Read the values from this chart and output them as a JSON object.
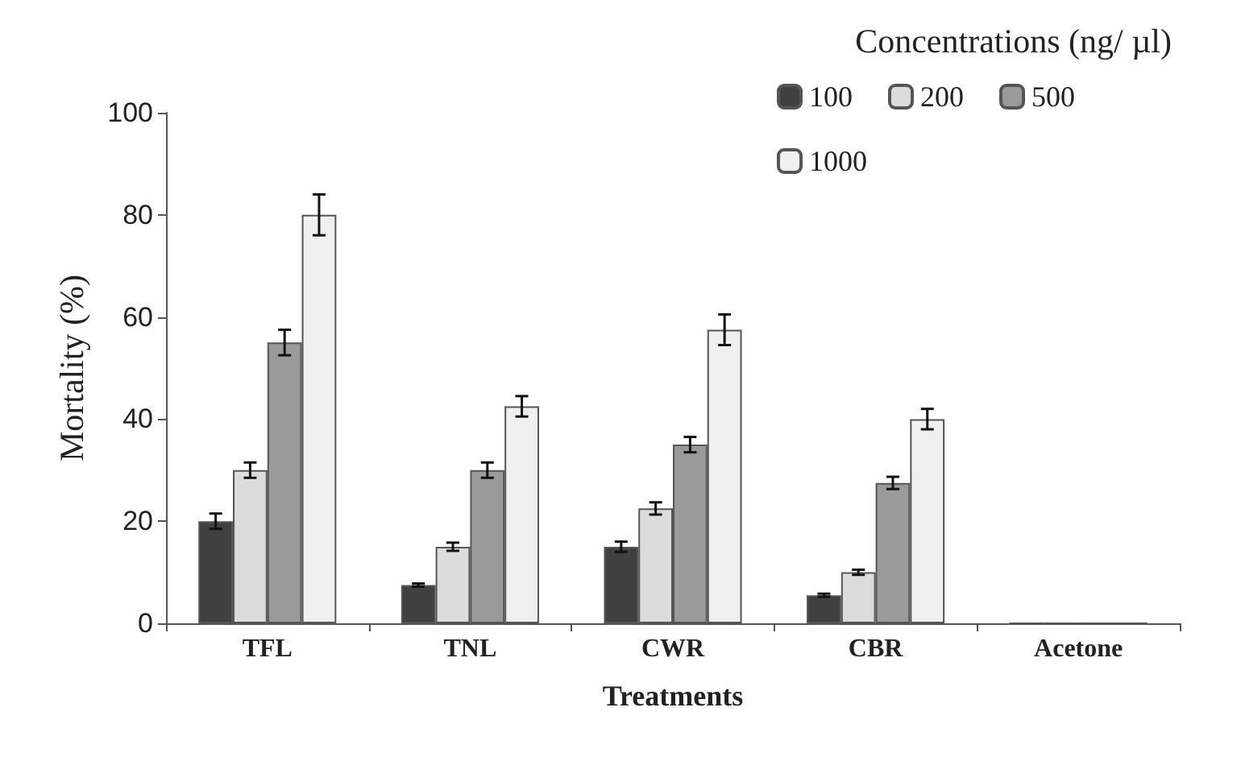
{
  "chart_data": {
    "type": "bar",
    "xlabel": "Treatments",
    "ylabel": "Mortality (%)",
    "legend_title": "Concentrations (ng/ µl)",
    "categories": [
      "TFL",
      "TNL",
      "CWR",
      "CBR",
      "Acetone"
    ],
    "series": [
      {
        "name": "100",
        "color": "#404040",
        "values": [
          20,
          7.5,
          15,
          5.5,
          0
        ],
        "errors": [
          1.5,
          0.3,
          1,
          0.3,
          null
        ]
      },
      {
        "name": "200",
        "color": "#dcdcdc",
        "values": [
          30,
          15,
          22.5,
          10,
          0
        ],
        "errors": [
          1.5,
          0.8,
          1.2,
          0.5,
          null
        ]
      },
      {
        "name": "500",
        "color": "#9a9a9a",
        "values": [
          55,
          30,
          35,
          27.5,
          0
        ],
        "errors": [
          2.5,
          1.5,
          1.5,
          1.2,
          null
        ]
      },
      {
        "name": "1000",
        "color": "#f0f0f0",
        "values": [
          80,
          42.5,
          57.5,
          40,
          0
        ],
        "errors": [
          4,
          2,
          3,
          2,
          null
        ]
      }
    ],
    "ylim": [
      0,
      100
    ],
    "yticks": [
      0,
      20,
      40,
      60,
      80,
      100
    ],
    "grid": false,
    "legend": "top right"
  }
}
